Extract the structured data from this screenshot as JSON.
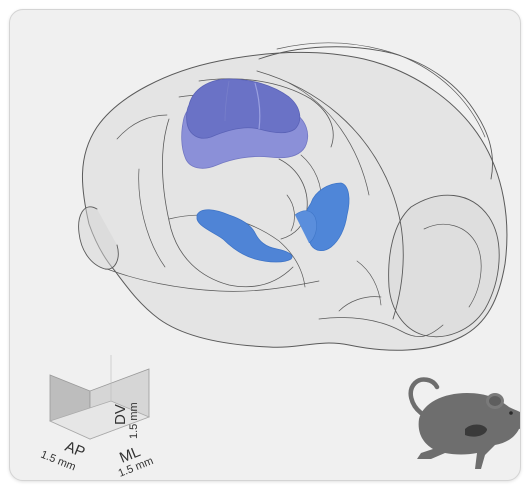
{
  "scale_bar": {
    "dv_label": "DV",
    "dv_value": "1.5 mm",
    "ml_label": "ML",
    "ml_value": "1.5 mm",
    "ap_label": "AP",
    "ap_value": "1.5 mm"
  },
  "colors": {
    "card_bg": "#f0f0f0",
    "brain_fill": "#dcdcdc",
    "brain_outline": "#5a5a5a",
    "region_dorsal_dark": "#6a72c4",
    "region_dorsal_light": "#8a8fd6",
    "region_ventral": "#4f86d8",
    "mouse": "#6e6e6e"
  },
  "icons": [
    "brain-outline",
    "mouse-icon",
    "scale-cube"
  ]
}
